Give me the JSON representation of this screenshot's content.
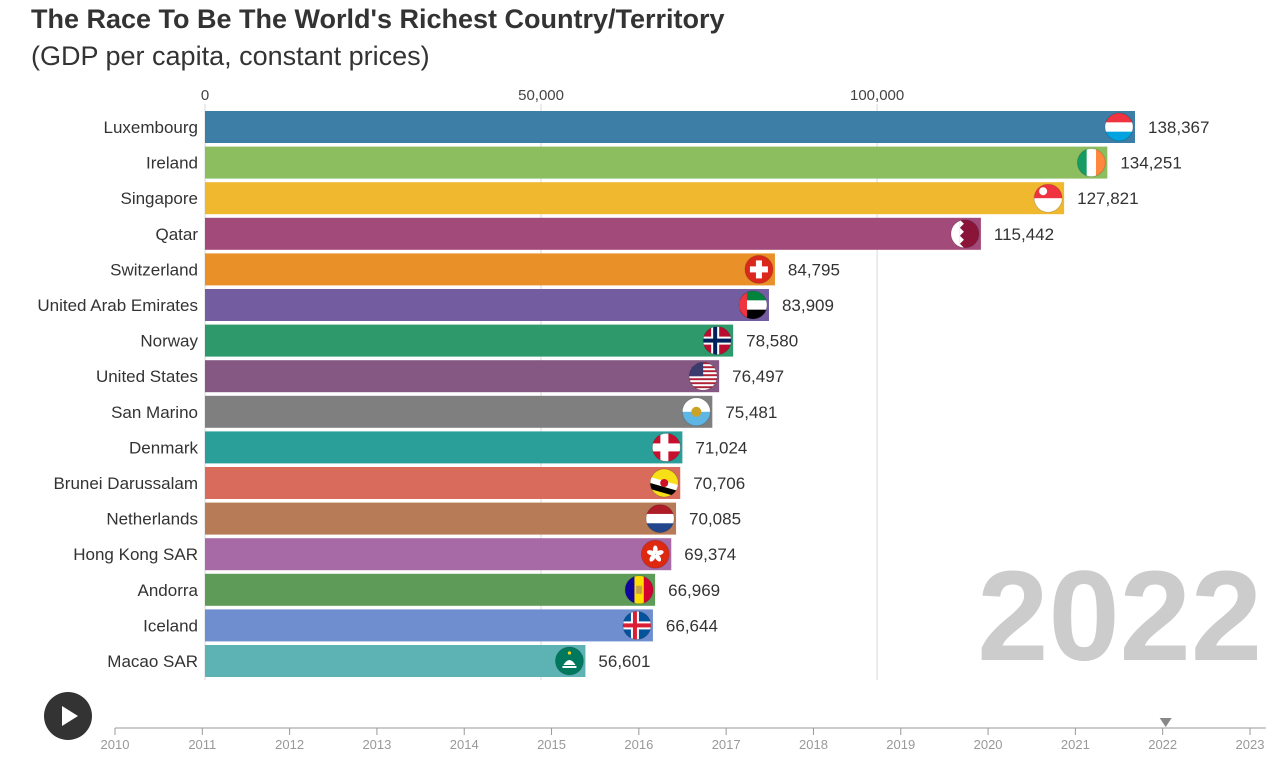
{
  "title": "The Race To Be The World's Richest Country/Territory",
  "subtitle": "(GDP per capita, constant prices)",
  "year_label": "2022",
  "play_icon": "play-icon",
  "chart_data": {
    "type": "bar",
    "orientation": "horizontal",
    "title": "The Race To Be The World's Richest Country/Territory",
    "subtitle": "(GDP per capita, constant prices)",
    "xlim": [
      0,
      138367
    ],
    "x_ticks": [
      {
        "value": 0,
        "label": "0"
      },
      {
        "value": 50000,
        "label": "50,000"
      },
      {
        "value": 100000,
        "label": "100,000"
      }
    ],
    "categories": [
      "Luxembourg",
      "Ireland",
      "Singapore",
      "Qatar",
      "Switzerland",
      "United Arab Emirates",
      "Norway",
      "United States",
      "San Marino",
      "Denmark",
      "Brunei Darussalam",
      "Netherlands",
      "Hong Kong SAR",
      "Andorra",
      "Iceland",
      "Macao SAR"
    ],
    "values": [
      138367,
      134251,
      127821,
      115442,
      84795,
      83909,
      78580,
      76497,
      75481,
      71024,
      70706,
      70085,
      69374,
      66969,
      66644,
      56601
    ],
    "value_labels": [
      "138,367",
      "134,251",
      "127,821",
      "115,442",
      "84,795",
      "83,909",
      "78,580",
      "76,497",
      "75,481",
      "71,024",
      "70,706",
      "70,085",
      "69,374",
      "66,969",
      "66,644",
      "56,601"
    ],
    "colors": [
      "#3d7ea6",
      "#8cbd5f",
      "#f0b82f",
      "#a24a7a",
      "#e99128",
      "#745ca1",
      "#2e9a6c",
      "#845882",
      "#7f7f7f",
      "#2a9e98",
      "#d96b5c",
      "#b87b58",
      "#a76aa7",
      "#5e9a58",
      "#6e8ecf",
      "#5db3b3"
    ],
    "flags": [
      "luxembourg-flag-icon",
      "ireland-flag-icon",
      "singapore-flag-icon",
      "qatar-flag-icon",
      "switzerland-flag-icon",
      "uae-flag-icon",
      "norway-flag-icon",
      "usa-flag-icon",
      "san-marino-flag-icon",
      "denmark-flag-icon",
      "brunei-flag-icon",
      "netherlands-flag-icon",
      "hong-kong-flag-icon",
      "andorra-flag-icon",
      "iceland-flag-icon",
      "macao-flag-icon"
    ],
    "year": 2022
  },
  "timeline": {
    "years": [
      "2010",
      "2011",
      "2012",
      "2013",
      "2014",
      "2015",
      "2016",
      "2017",
      "2018",
      "2019",
      "2020",
      "2021",
      "2022",
      "2023"
    ],
    "current": "2022"
  }
}
